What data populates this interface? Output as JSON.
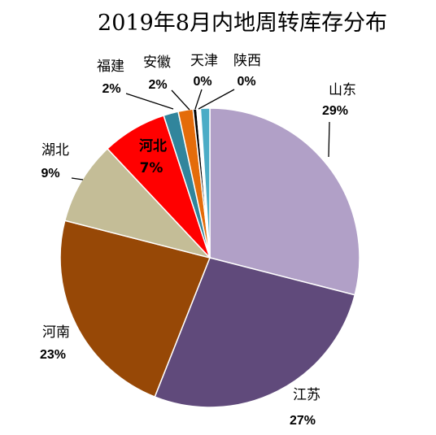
{
  "chart_data": {
    "type": "pie",
    "title": "2019年8月内地周转库存分布",
    "slices": [
      {
        "name": "山东",
        "value": 29,
        "label": "29%",
        "color": "#b1a0c7"
      },
      {
        "name": "江苏",
        "value": 27,
        "label": "27%",
        "color": "#604a7b"
      },
      {
        "name": "河南",
        "value": 23,
        "label": "23%",
        "color": "#974806"
      },
      {
        "name": "湖北",
        "value": 9,
        "label": "9%",
        "color": "#c4bd97"
      },
      {
        "name": "河北",
        "value": 7,
        "label": "7%",
        "color": "#ff0000"
      },
      {
        "name": "福建",
        "value": 1.6,
        "label": "2%",
        "color": "#31859c"
      },
      {
        "name": "安徽",
        "value": 1.6,
        "label": "2%",
        "color": "#e46c0a"
      },
      {
        "name": "天津",
        "value": 0.4,
        "label": "0%",
        "color": "#000000"
      },
      {
        "name": "陕西",
        "value": 0.4,
        "label": "0%",
        "color": "#ffffff"
      },
      {
        "name": "",
        "value": 1.0,
        "label": "",
        "color": "#4bacc6"
      }
    ]
  }
}
